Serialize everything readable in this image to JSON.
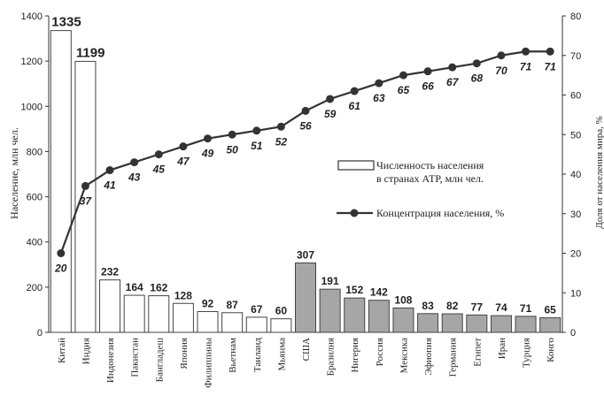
{
  "chart_data": {
    "type": "bar",
    "categories": [
      "Китай",
      "Индия",
      "Индонезия",
      "Пакистан",
      "Бангладеш",
      "Япония",
      "Филиппины",
      "Вьетнам",
      "Таиланд",
      "Мьянма",
      "США",
      "Бразилия",
      "Нигерия",
      "Россия",
      "Мексика",
      "Эфиопия",
      "Германия",
      "Египет",
      "Иран",
      "Турция",
      "Конго"
    ],
    "series": [
      {
        "name": "Численность населения в странах АТР, млн чел.",
        "type": "bar",
        "axis": "left",
        "values": [
          1335,
          1199,
          232,
          164,
          162,
          128,
          92,
          87,
          67,
          60,
          307,
          191,
          152,
          142,
          108,
          83,
          82,
          77,
          74,
          71,
          65
        ],
        "color_apr": "#ffffff",
        "color_other": "#a6a6a6"
      },
      {
        "name": "Концентрация населения, %",
        "type": "line",
        "axis": "right",
        "values": [
          20,
          37,
          41,
          43,
          45,
          47,
          49,
          50,
          51,
          52,
          56,
          59,
          61,
          63,
          65,
          66,
          67,
          68,
          70,
          71,
          71
        ],
        "color": "#333333"
      }
    ],
    "apr_count": 10,
    "ylabel": "Население, млн чел.",
    "ylabel_right": "Доля от населения мира, %",
    "ylim": [
      0,
      1400
    ],
    "ylim_right": [
      0,
      80
    ],
    "yticks": [
      0,
      200,
      400,
      600,
      800,
      1000,
      1200,
      1400
    ],
    "yticks_right": [
      0,
      10,
      20,
      30,
      40,
      50,
      60,
      70,
      80
    ],
    "legend": {
      "bar_label_line1": "Численность населения",
      "bar_label_line2": "в странах АТР, млн чел.",
      "line_label": "Концентрация населения, %"
    },
    "grid": false,
    "legend_position": "right-middle"
  }
}
